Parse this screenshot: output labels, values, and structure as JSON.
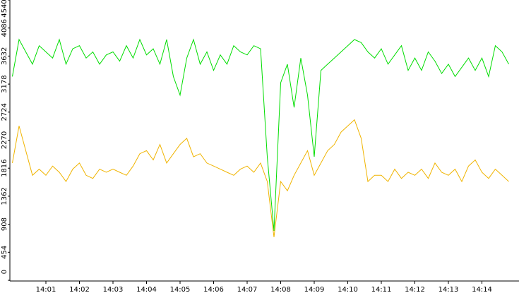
{
  "chart_data": {
    "type": "line",
    "x": [
      0,
      0.2,
      0.4,
      0.6,
      0.8,
      1,
      1.2,
      1.4,
      1.6,
      1.8,
      2,
      2.2,
      2.4,
      2.6,
      2.8,
      3,
      3.2,
      3.4,
      3.6,
      3.8,
      4,
      4.2,
      4.4,
      4.6,
      4.8,
      5,
      5.2,
      5.4,
      5.6,
      5.8,
      6,
      6.2,
      6.4,
      6.6,
      6.8,
      7,
      7.2,
      7.4,
      7.6,
      7.8,
      8,
      8.2,
      8.4,
      8.6,
      8.8,
      9,
      9.2,
      9.4,
      9.6,
      9.8,
      10,
      10.2,
      10.4,
      10.6,
      10.8,
      11,
      11.2,
      11.4,
      11.6,
      11.8,
      12,
      12.2,
      12.4,
      12.6,
      12.8,
      13,
      13.2,
      13.4,
      13.6,
      13.8,
      14,
      14.2,
      14.4,
      14.6,
      14.8
    ],
    "series": [
      {
        "color": "#00dd00",
        "values": [
          3300,
          3900,
          3700,
          3500,
          3800,
          3700,
          3600,
          3900,
          3500,
          3750,
          3800,
          3600,
          3700,
          3500,
          3650,
          3700,
          3550,
          3800,
          3600,
          3900,
          3650,
          3750,
          3500,
          3900,
          3300,
          3000,
          3600,
          3900,
          3500,
          3700,
          3400,
          3650,
          3500,
          3800,
          3700,
          3650,
          3800,
          3750,
          2000,
          800,
          3200,
          3500,
          2800,
          3600,
          3000,
          2000,
          3400,
          3500,
          3600,
          3700,
          3800,
          3900,
          3850,
          3700,
          3600,
          3750,
          3500,
          3650,
          3800,
          3400,
          3600,
          3400,
          3700,
          3550,
          3350,
          3500,
          3300,
          3450,
          3600,
          3400,
          3600,
          3300,
          3800,
          3700,
          3500
        ]
      },
      {
        "color": "#f0b400",
        "values": [
          1900,
          2500,
          2100,
          1700,
          1800,
          1700,
          1850,
          1750,
          1600,
          1800,
          1900,
          1700,
          1650,
          1800,
          1750,
          1800,
          1750,
          1700,
          1850,
          2050,
          2100,
          1950,
          2200,
          1900,
          2050,
          2200,
          2300,
          2000,
          2050,
          1900,
          1850,
          1800,
          1750,
          1700,
          1800,
          1850,
          1750,
          1900,
          1600,
          700,
          1600,
          1450,
          1700,
          1900,
          2100,
          1700,
          1900,
          2100,
          2200,
          2400,
          2500,
          2600,
          2300,
          1600,
          1700,
          1700,
          1600,
          1800,
          1650,
          1750,
          1700,
          1800,
          1650,
          1900,
          1750,
          1700,
          1800,
          1600,
          1850,
          1950,
          1750,
          1650,
          1800,
          1700,
          1600
        ]
      }
    ],
    "xlim": [
      0,
      15
    ],
    "xticks": [
      {
        "value": 1,
        "label": "14:01"
      },
      {
        "value": 2,
        "label": "14:02"
      },
      {
        "value": 3,
        "label": "14:03"
      },
      {
        "value": 4,
        "label": "14:04"
      },
      {
        "value": 5,
        "label": "14:05"
      },
      {
        "value": 6,
        "label": "14:06"
      },
      {
        "value": 7,
        "label": "14:07"
      },
      {
        "value": 8,
        "label": "14:08"
      },
      {
        "value": 9,
        "label": "14:09"
      },
      {
        "value": 10,
        "label": "14:10"
      },
      {
        "value": 11,
        "label": "14:11"
      },
      {
        "value": 12,
        "label": "14:12"
      },
      {
        "value": 13,
        "label": "14:13"
      },
      {
        "value": 14,
        "label": "14:14"
      }
    ],
    "ylim": [
      0,
      4540
    ],
    "yticks": [
      0,
      454,
      908,
      1362,
      1816,
      2270,
      2724,
      3178,
      3632,
      4086,
      4540
    ]
  }
}
